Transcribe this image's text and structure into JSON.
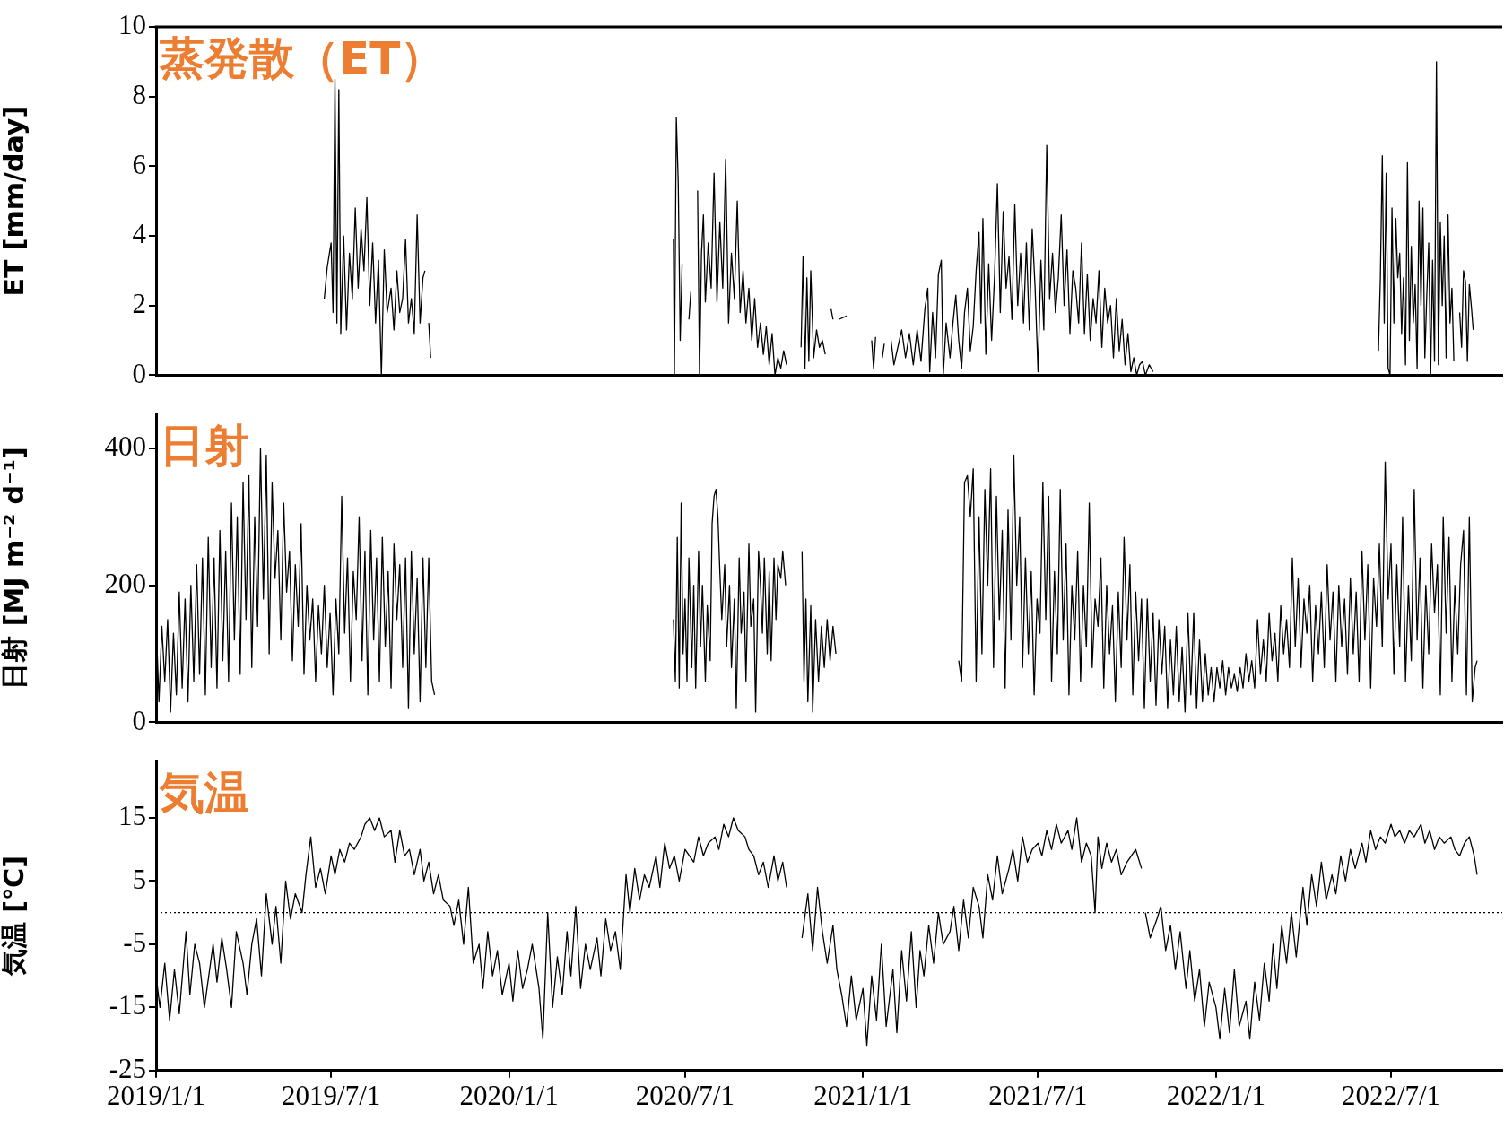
{
  "chart_data": [
    {
      "type": "line",
      "title": "蒸発散（ET）",
      "ylabel": "ET [mm/day]",
      "color": "#000000",
      "tick_labels": "y",
      "xlim": [
        "2019-01-01",
        "2022-10-24"
      ],
      "ylim": [
        0,
        10
      ],
      "yticks": [
        0,
        2,
        4,
        6,
        8,
        10
      ],
      "x": [
        "2019-06-24",
        "2019-06-27",
        "2019-07-01",
        "2019-07-03",
        "2019-07-05",
        "2019-07-07",
        "2019-07-09",
        "2019-07-11",
        "2019-07-14",
        "2019-07-17",
        "2019-07-20",
        "2019-07-23",
        "2019-07-26",
        "2019-07-29",
        "2019-08-01",
        "2019-08-04",
        "2019-08-07",
        "2019-08-10",
        "2019-08-13",
        "2019-08-16",
        "2019-08-19",
        "2019-08-22",
        "2019-08-25",
        "2019-08-28",
        "2019-09-01",
        "2019-09-04",
        "2019-09-07",
        "2019-09-10",
        "2019-09-13",
        "2019-09-16",
        "2019-09-19",
        "2019-09-22",
        "2019-09-25",
        "2019-09-28",
        "2019-10-01",
        "2019-10-04",
        "2019-10-06",
        "2019-10-08",
        "2019-10-10",
        "2019-10-12",
        "2019-10-14",
        "2020-06-19",
        "2020-06-20",
        "2020-06-22",
        "2020-06-24",
        "2020-06-26",
        "2020-06-28",
        "2020-07-01",
        "2020-07-05",
        "2020-07-07",
        "2020-07-09",
        "2020-07-14",
        "2020-07-16",
        "2020-07-18",
        "2020-07-20",
        "2020-07-22",
        "2020-07-25",
        "2020-07-28",
        "2020-07-31",
        "2020-08-03",
        "2020-08-06",
        "2020-08-09",
        "2020-08-12",
        "2020-08-15",
        "2020-08-18",
        "2020-08-21",
        "2020-08-24",
        "2020-08-27",
        "2020-08-30",
        "2020-09-02",
        "2020-09-05",
        "2020-09-08",
        "2020-09-11",
        "2020-09-14",
        "2020-09-17",
        "2020-09-20",
        "2020-09-23",
        "2020-09-26",
        "2020-09-29",
        "2020-10-02",
        "2020-10-05",
        "2020-10-08",
        "2020-10-11",
        "2020-10-14",
        "2020-10-20",
        "2020-10-29",
        "2020-10-31",
        "2020-11-02",
        "2020-11-04",
        "2020-11-06",
        "2020-11-08",
        "2020-11-11",
        "2020-11-14",
        "2020-11-17",
        "2020-11-20",
        "2020-11-23",
        "2020-11-26",
        "2020-11-29",
        "2020-12-01",
        "2020-12-03",
        "2020-12-07",
        "2020-12-15",
        "2020-12-20",
        "2021-01-10",
        "2021-01-12",
        "2021-01-14",
        "2021-01-17",
        "2021-01-21",
        "2021-01-23",
        "2021-01-26",
        "2021-01-30",
        "2021-02-02",
        "2021-02-06",
        "2021-02-10",
        "2021-02-14",
        "2021-02-18",
        "2021-02-22",
        "2021-02-26",
        "2021-03-02",
        "2021-03-06",
        "2021-03-09",
        "2021-03-11",
        "2021-03-14",
        "2021-03-17",
        "2021-03-20",
        "2021-03-23",
        "2021-03-25",
        "2021-03-28",
        "2021-04-01",
        "2021-04-04",
        "2021-04-07",
        "2021-04-10",
        "2021-04-13",
        "2021-04-16",
        "2021-04-19",
        "2021-04-22",
        "2021-04-25",
        "2021-04-28",
        "2021-05-01",
        "2021-05-03",
        "2021-05-05",
        "2021-05-08",
        "2021-05-11",
        "2021-05-14",
        "2021-05-17",
        "2021-05-20",
        "2021-05-23",
        "2021-05-26",
        "2021-05-29",
        "2021-06-01",
        "2021-06-04",
        "2021-06-07",
        "2021-06-10",
        "2021-06-13",
        "2021-06-16",
        "2021-06-19",
        "2021-06-22",
        "2021-06-25",
        "2021-06-28",
        "2021-07-01",
        "2021-07-04",
        "2021-07-07",
        "2021-07-10",
        "2021-07-13",
        "2021-07-16",
        "2021-07-19",
        "2021-07-22",
        "2021-07-25",
        "2021-07-28",
        "2021-07-31",
        "2021-08-03",
        "2021-08-06",
        "2021-08-09",
        "2021-08-12",
        "2021-08-15",
        "2021-08-18",
        "2021-08-21",
        "2021-08-24",
        "2021-08-27",
        "2021-08-30",
        "2021-09-02",
        "2021-09-05",
        "2021-09-08",
        "2021-09-11",
        "2021-09-14",
        "2021-09-17",
        "2021-09-20",
        "2021-09-23",
        "2021-09-26",
        "2021-09-29",
        "2021-10-02",
        "2021-10-05",
        "2021-10-08",
        "2021-10-11",
        "2021-10-14",
        "2021-10-17",
        "2021-10-20",
        "2021-10-24",
        "2021-10-28",
        "2021-11-05",
        "2022-06-18",
        "2022-06-20",
        "2022-06-22",
        "2022-06-24",
        "2022-06-26",
        "2022-06-28",
        "2022-06-30",
        "2022-07-02",
        "2022-07-04",
        "2022-07-06",
        "2022-07-08",
        "2022-07-10",
        "2022-07-12",
        "2022-07-14",
        "2022-07-16",
        "2022-07-18",
        "2022-07-20",
        "2022-07-22",
        "2022-07-24",
        "2022-07-26",
        "2022-07-28",
        "2022-07-30",
        "2022-08-01",
        "2022-08-03",
        "2022-08-05",
        "2022-08-07",
        "2022-08-09",
        "2022-08-11",
        "2022-08-13",
        "2022-08-15",
        "2022-08-17",
        "2022-08-19",
        "2022-08-21",
        "2022-08-23",
        "2022-08-25",
        "2022-08-27",
        "2022-08-29",
        "2022-08-31",
        "2022-09-02",
        "2022-09-04",
        "2022-09-06",
        "2022-09-10",
        "2022-09-12",
        "2022-09-14",
        "2022-09-16",
        "2022-09-18",
        "2022-09-20",
        "2022-09-22",
        "2022-09-24"
      ],
      "values": [
        2.2,
        3.1,
        3.8,
        1.8,
        8.5,
        1.5,
        8.2,
        1.2,
        4.0,
        1.3,
        3.5,
        2.2,
        4.8,
        2.5,
        4.2,
        3.0,
        5.1,
        2.0,
        3.8,
        1.5,
        3.3,
        0.0,
        3.6,
        1.8,
        2.5,
        1.3,
        3.0,
        1.8,
        2.2,
        3.9,
        1.5,
        2.2,
        1.2,
        4.6,
        1.5,
        2.8,
        3.0,
        null,
        1.5,
        0.5,
        null,
        3.9,
        0.0,
        7.4,
        5.5,
        1.0,
        3.2,
        null,
        1.6,
        2.4,
        null,
        5.3,
        0.0,
        3.5,
        4.6,
        2.1,
        3.8,
        2.5,
        5.8,
        2.1,
        4.4,
        2.5,
        6.2,
        1.5,
        3.5,
        2.2,
        5.0,
        1.8,
        3.0,
        1.5,
        2.5,
        1.0,
        2.2,
        0.8,
        1.5,
        0.6,
        1.4,
        0.3,
        1.2,
        0.0,
        0.5,
        0.2,
        0.7,
        0.3,
        null,
        0.8,
        3.4,
        0.2,
        2.8,
        0.4,
        3.0,
        0.5,
        1.3,
        0.8,
        1.0,
        0.6,
        null,
        1.9,
        1.6,
        null,
        1.6,
        1.7,
        null,
        1.0,
        0.2,
        1.1,
        null,
        0.5,
        0.9,
        null,
        1.0,
        0.3,
        0.8,
        1.3,
        0.5,
        1.2,
        0.3,
        1.3,
        0.4,
        1.9,
        2.5,
        0.1,
        1.8,
        0.5,
        2.9,
        3.3,
        0.0,
        1.5,
        0.5,
        1.5,
        2.3,
        1.0,
        0.2,
        1.8,
        2.5,
        0.7,
        1.4,
        3.0,
        4.1,
        1.5,
        4.5,
        0.6,
        3.2,
        1.0,
        2.8,
        5.5,
        1.8,
        4.7,
        2.5,
        3.4,
        1.6,
        4.9,
        2.0,
        3.5,
        1.5,
        3.8,
        1.3,
        4.2,
        2.5,
        0.1,
        3.3,
        1.3,
        6.6,
        2.2,
        3.5,
        1.8,
        2.8,
        4.6,
        2.0,
        3.6,
        1.2,
        3.0,
        2.5,
        1.5,
        3.8,
        1.2,
        2.9,
        1.0,
        2.2,
        1.5,
        3.0,
        0.8,
        2.5,
        1.5,
        2.0,
        0.5,
        2.2,
        0.7,
        1.6,
        0.3,
        1.2,
        0.1,
        0.5,
        0.0,
        0.3,
        0.4,
        0.0,
        0.3,
        0.1,
        null,
        0.7,
        2.8,
        6.3,
        1.5,
        5.8,
        0.2,
        0.0,
        4.8,
        1.5,
        4.5,
        2.8,
        3.5,
        1.2,
        2.8,
        0.3,
        6.1,
        1.0,
        3.7,
        1.5,
        2.6,
        0.2,
        5.0,
        2.0,
        4.8,
        0.5,
        2.3,
        3.8,
        0.0,
        3.3,
        0.4,
        9.0,
        0.3,
        4.4,
        2.0,
        4.0,
        0.5,
        4.6,
        1.5,
        2.5,
        0.4,
        null,
        1.8,
        0.8,
        3.0,
        2.7,
        0.4,
        2.6,
        2.0,
        1.3
      ]
    },
    {
      "type": "line",
      "title": "日射",
      "ylabel": "日射 [MJ m⁻² d⁻¹]",
      "color": "#000000",
      "tick_labels": "y",
      "xlim": [
        "2019-01-01",
        "2022-10-24"
      ],
      "ylim": [
        0,
        450
      ],
      "yticks": [
        0,
        200,
        400
      ],
      "x": [
        "2019-01-01",
        "2019-01-04",
        "2019-01-07",
        "2019-01-10",
        "2019-01-13",
        "2019-01-16",
        "2019-01-19",
        "2019-01-22",
        "2019-01-25",
        "2019-01-28",
        "2019-01-31",
        "2019-02-03",
        "2019-02-06",
        "2019-02-09",
        "2019-02-12",
        "2019-02-15",
        "2019-02-18",
        "2019-02-21",
        "2019-02-24",
        "2019-02-27",
        "2019-03-02",
        "2019-03-05",
        "2019-03-08",
        "2019-03-11",
        "2019-03-14",
        "2019-03-17",
        "2019-03-20",
        "2019-03-23",
        "2019-03-26",
        "2019-03-29",
        "2019-04-01",
        "2019-04-04",
        "2019-04-07",
        "2019-04-10",
        "2019-04-13",
        "2019-04-16",
        "2019-04-19",
        "2019-04-22",
        "2019-04-25",
        "2019-04-28",
        "2019-05-01",
        "2019-05-04",
        "2019-05-07",
        "2019-05-10",
        "2019-05-13",
        "2019-05-16",
        "2019-05-19",
        "2019-05-22",
        "2019-05-25",
        "2019-05-28",
        "2019-05-31",
        "2019-06-03",
        "2019-06-06",
        "2019-06-09",
        "2019-06-12",
        "2019-06-15",
        "2019-06-18",
        "2019-06-21",
        "2019-06-24",
        "2019-06-27",
        "2019-06-30",
        "2019-07-03",
        "2019-07-06",
        "2019-07-09",
        "2019-07-12",
        "2019-07-15",
        "2019-07-18",
        "2019-07-21",
        "2019-07-24",
        "2019-07-27",
        "2019-07-30",
        "2019-08-02",
        "2019-08-05",
        "2019-08-08",
        "2019-08-11",
        "2019-08-14",
        "2019-08-17",
        "2019-08-20",
        "2019-08-23",
        "2019-08-26",
        "2019-08-29",
        "2019-09-01",
        "2019-09-04",
        "2019-09-07",
        "2019-09-10",
        "2019-09-13",
        "2019-09-16",
        "2019-09-19",
        "2019-09-22",
        "2019-09-25",
        "2019-09-28",
        "2019-10-01",
        "2019-10-04",
        "2019-10-07",
        "2019-10-10",
        "2019-10-13",
        "2019-10-16",
        "2019-10-18",
        "2020-06-19",
        "2020-06-21",
        "2020-06-23",
        "2020-06-25",
        "2020-06-27",
        "2020-06-29",
        "2020-07-01",
        "2020-07-03",
        "2020-07-05",
        "2020-07-08",
        "2020-07-10",
        "2020-07-12",
        "2020-07-15",
        "2020-07-17",
        "2020-07-19",
        "2020-07-22",
        "2020-07-24",
        "2020-07-27",
        "2020-07-29",
        "2020-07-31",
        "2020-08-02",
        "2020-08-04",
        "2020-08-06",
        "2020-08-08",
        "2020-08-11",
        "2020-08-13",
        "2020-08-16",
        "2020-08-18",
        "2020-08-21",
        "2020-08-23",
        "2020-08-26",
        "2020-08-28",
        "2020-08-31",
        "2020-09-02",
        "2020-09-05",
        "2020-09-07",
        "2020-09-10",
        "2020-09-12",
        "2020-09-15",
        "2020-09-17",
        "2020-09-19",
        "2020-09-21",
        "2020-09-24",
        "2020-09-26",
        "2020-09-28",
        "2020-10-01",
        "2020-10-03",
        "2020-10-05",
        "2020-10-08",
        "2020-10-10",
        "2020-10-13",
        "2020-10-20",
        "2020-10-30",
        "2020-11-01",
        "2020-11-03",
        "2020-11-05",
        "2020-11-08",
        "2020-11-10",
        "2020-11-13",
        "2020-11-16",
        "2020-11-19",
        "2020-11-22",
        "2020-11-25",
        "2020-11-28",
        "2020-12-01",
        "2020-12-04",
        "2020-12-10",
        "2021-04-10",
        "2021-04-13",
        "2021-04-16",
        "2021-04-19",
        "2021-04-22",
        "2021-04-25",
        "2021-04-28",
        "2021-05-01",
        "2021-05-04",
        "2021-05-07",
        "2021-05-10",
        "2021-05-13",
        "2021-05-16",
        "2021-05-19",
        "2021-05-22",
        "2021-05-25",
        "2021-05-28",
        "2021-05-31",
        "2021-06-03",
        "2021-06-06",
        "2021-06-09",
        "2021-06-12",
        "2021-06-15",
        "2021-06-18",
        "2021-06-21",
        "2021-06-24",
        "2021-06-27",
        "2021-06-30",
        "2021-07-03",
        "2021-07-06",
        "2021-07-09",
        "2021-07-12",
        "2021-07-15",
        "2021-07-18",
        "2021-07-21",
        "2021-07-24",
        "2021-07-27",
        "2021-07-30",
        "2021-08-02",
        "2021-08-05",
        "2021-08-08",
        "2021-08-11",
        "2021-08-14",
        "2021-08-17",
        "2021-08-20",
        "2021-08-23",
        "2021-08-26",
        "2021-08-29",
        "2021-09-01",
        "2021-09-04",
        "2021-09-07",
        "2021-09-10",
        "2021-09-13",
        "2021-09-16",
        "2021-09-19",
        "2021-09-22",
        "2021-09-25",
        "2021-09-28",
        "2021-10-01",
        "2021-10-04",
        "2021-10-07",
        "2021-10-10",
        "2021-10-13",
        "2021-10-16",
        "2021-10-19",
        "2021-10-22",
        "2021-10-25",
        "2021-10-28",
        "2021-10-31",
        "2021-11-03",
        "2021-11-06",
        "2021-11-09",
        "2021-11-12",
        "2021-11-15",
        "2021-11-18",
        "2021-11-21",
        "2021-11-24",
        "2021-11-27",
        "2021-11-30",
        "2021-12-03",
        "2021-12-06",
        "2021-12-09",
        "2021-12-12",
        "2021-12-15",
        "2021-12-18",
        "2021-12-21",
        "2021-12-24",
        "2021-12-27",
        "2021-12-30",
        "2022-01-02",
        "2022-01-05",
        "2022-01-08",
        "2022-01-11",
        "2022-01-14",
        "2022-01-17",
        "2022-01-20",
        "2022-01-23",
        "2022-01-26",
        "2022-01-29",
        "2022-02-01",
        "2022-02-04",
        "2022-02-07",
        "2022-02-10",
        "2022-02-13",
        "2022-02-16",
        "2022-02-19",
        "2022-02-22",
        "2022-02-25",
        "2022-02-28",
        "2022-03-03",
        "2022-03-06",
        "2022-03-09",
        "2022-03-12",
        "2022-03-15",
        "2022-03-18",
        "2022-03-21",
        "2022-03-24",
        "2022-03-27",
        "2022-03-30",
        "2022-04-02",
        "2022-04-05",
        "2022-04-08",
        "2022-04-11",
        "2022-04-14",
        "2022-04-17",
        "2022-04-20",
        "2022-04-23",
        "2022-04-26",
        "2022-04-29",
        "2022-05-02",
        "2022-05-05",
        "2022-05-08",
        "2022-05-11",
        "2022-05-14",
        "2022-05-17",
        "2022-05-20",
        "2022-05-23",
        "2022-05-26",
        "2022-05-29",
        "2022-06-01",
        "2022-06-04",
        "2022-06-07",
        "2022-06-10",
        "2022-06-13",
        "2022-06-16",
        "2022-06-19",
        "2022-06-22",
        "2022-06-25",
        "2022-06-28",
        "2022-07-01",
        "2022-07-04",
        "2022-07-07",
        "2022-07-10",
        "2022-07-13",
        "2022-07-16",
        "2022-07-19",
        "2022-07-22",
        "2022-07-25",
        "2022-07-28",
        "2022-07-31",
        "2022-08-03",
        "2022-08-06",
        "2022-08-09",
        "2022-08-12",
        "2022-08-15",
        "2022-08-18",
        "2022-08-21",
        "2022-08-24",
        "2022-08-27",
        "2022-08-30",
        "2022-09-02",
        "2022-09-05",
        "2022-09-08",
        "2022-09-11",
        "2022-09-14",
        "2022-09-17",
        "2022-09-20",
        "2022-09-23",
        "2022-09-26",
        "2022-09-28"
      ],
      "values": [
        150,
        30,
        140,
        60,
        150,
        15,
        130,
        40,
        190,
        50,
        180,
        30,
        200,
        60,
        230,
        70,
        240,
        40,
        270,
        80,
        240,
        50,
        280,
        90,
        250,
        60,
        320,
        120,
        300,
        70,
        350,
        150,
        360,
        80,
        300,
        140,
        400,
        180,
        390,
        100,
        350,
        210,
        280,
        120,
        320,
        190,
        250,
        90,
        230,
        140,
        290,
        70,
        200,
        120,
        180,
        60,
        170,
        100,
        200,
        80,
        160,
        40,
        180,
        100,
        330,
        130,
        240,
        60,
        220,
        150,
        300,
        90,
        250,
        40,
        280,
        120,
        240,
        60,
        270,
        110,
        220,
        50,
        260,
        150,
        230,
        80,
        240,
        20,
        250,
        100,
        210,
        30,
        240,
        80,
        240,
        60,
        40,
        null,
        150,
        60,
        270,
        50,
        320,
        100,
        180,
        60,
        240,
        80,
        200,
        50,
        250,
        110,
        200,
        60,
        170,
        90,
        290,
        330,
        340,
        300,
        220,
        150,
        230,
        110,
        200,
        80,
        180,
        20,
        240,
        130,
        190,
        60,
        260,
        140,
        180,
        15,
        250,
        200,
        130,
        240,
        100,
        220,
        90,
        240,
        150,
        230,
        210,
        250,
        200,
        null,
        250,
        60,
        180,
        30,
        170,
        15,
        150,
        60,
        140,
        80,
        150,
        90,
        140,
        100,
        null,
        90,
        60,
        350,
        360,
        300,
        370,
        60,
        300,
        100,
        340,
        200,
        370,
        80,
        330,
        150,
        280,
        50,
        310,
        120,
        390,
        200,
        300,
        80,
        240,
        100,
        220,
        40,
        180,
        130,
        350,
        150,
        330,
        60,
        220,
        100,
        340,
        120,
        260,
        40,
        200,
        120,
        250,
        60,
        200,
        110,
        320,
        80,
        180,
        140,
        240,
        50,
        200,
        100,
        170,
        30,
        190,
        80,
        270,
        120,
        230,
        40,
        190,
        90,
        180,
        20,
        180,
        60,
        160,
        25,
        150,
        70,
        140,
        20,
        120,
        40,
        140,
        30,
        110,
        15,
        160,
        40,
        160,
        20,
        120,
        30,
        100,
        40,
        80,
        30,
        80,
        50,
        90,
        40,
        80,
        50,
        70,
        45,
        80,
        50,
        100,
        60,
        90,
        50,
        150,
        70,
        120,
        60,
        160,
        90,
        130,
        60,
        170,
        100,
        150,
        80,
        240,
        110,
        210,
        80,
        180,
        130,
        200,
        60,
        170,
        100,
        190,
        80,
        230,
        120,
        190,
        60,
        200,
        110,
        180,
        70,
        210,
        100,
        190,
        60,
        250,
        120,
        230,
        50,
        210,
        140,
        260,
        110,
        380,
        180,
        260,
        70,
        230,
        110,
        300,
        60,
        200,
        90,
        340,
        120,
        240,
        50,
        200,
        100,
        260,
        160,
        230,
        40,
        300,
        130,
        270,
        60,
        200,
        100,
        230,
        280,
        40,
        300,
        30,
        80,
        90
      ]
    },
    {
      "type": "line",
      "title": "気温",
      "ylabel": "気温 [℃]",
      "color": "#000000",
      "xlim": [
        "2019-01-01",
        "2022-10-24"
      ],
      "ylim": [
        -25,
        24
      ],
      "yticks": [
        -25,
        -15,
        -5,
        5,
        15
      ],
      "xticks": [
        {
          "value": "2019-01-01",
          "label": "2019/1/1"
        },
        {
          "value": "2019-07-01",
          "label": "2019/7/1"
        },
        {
          "value": "2020-01-01",
          "label": "2020/1/1"
        },
        {
          "value": "2020-07-01",
          "label": "2020/7/1"
        },
        {
          "value": "2021-01-01",
          "label": "2021/1/1"
        },
        {
          "value": "2021-07-01",
          "label": "2021/7/1"
        },
        {
          "value": "2022-01-01",
          "label": "2022/1/1"
        },
        {
          "value": "2022-07-01",
          "label": "2022/7/1"
        }
      ],
      "ref_lines": [
        {
          "axis": "y",
          "value": 0,
          "color": "#000000",
          "line_style": "dotted"
        }
      ],
      "x": [
        "2019-01-01",
        "2019-01-05",
        "2019-01-10",
        "2019-01-15",
        "2019-01-20",
        "2019-01-25",
        "2019-02-01",
        "2019-02-05",
        "2019-02-10",
        "2019-02-15",
        "2019-02-20",
        "2019-03-01",
        "2019-03-05",
        "2019-03-10",
        "2019-03-15",
        "2019-03-20",
        "2019-03-25",
        "2019-04-01",
        "2019-04-05",
        "2019-04-10",
        "2019-04-15",
        "2019-04-20",
        "2019-04-25",
        "2019-05-01",
        "2019-05-05",
        "2019-05-10",
        "2019-05-15",
        "2019-05-20",
        "2019-05-25",
        "2019-06-01",
        "2019-06-05",
        "2019-06-10",
        "2019-06-15",
        "2019-06-20",
        "2019-06-25",
        "2019-07-01",
        "2019-07-05",
        "2019-07-10",
        "2019-07-15",
        "2019-07-20",
        "2019-07-25",
        "2019-08-01",
        "2019-08-05",
        "2019-08-10",
        "2019-08-15",
        "2019-08-20",
        "2019-08-25",
        "2019-09-01",
        "2019-09-05",
        "2019-09-10",
        "2019-09-15",
        "2019-09-20",
        "2019-09-25",
        "2019-10-01",
        "2019-10-05",
        "2019-10-10",
        "2019-10-15",
        "2019-10-20",
        "2019-10-25",
        "2019-11-01",
        "2019-11-05",
        "2019-11-10",
        "2019-11-15",
        "2019-11-20",
        "2019-11-25",
        "2019-12-01",
        "2019-12-05",
        "2019-12-10",
        "2019-12-15",
        "2019-12-20",
        "2019-12-25",
        "2020-01-01",
        "2020-01-05",
        "2020-01-10",
        "2020-01-15",
        "2020-01-20",
        "2020-01-25",
        "2020-02-01",
        "2020-02-05",
        "2020-02-10",
        "2020-02-15",
        "2020-02-20",
        "2020-02-25",
        "2020-03-01",
        "2020-03-05",
        "2020-03-10",
        "2020-03-15",
        "2020-03-20",
        "2020-03-25",
        "2020-04-01",
        "2020-04-05",
        "2020-04-10",
        "2020-04-15",
        "2020-04-20",
        "2020-04-25",
        "2020-05-01",
        "2020-05-05",
        "2020-05-10",
        "2020-05-15",
        "2020-05-20",
        "2020-05-25",
        "2020-06-01",
        "2020-06-05",
        "2020-06-10",
        "2020-06-15",
        "2020-06-20",
        "2020-06-25",
        "2020-07-01",
        "2020-07-10",
        "2020-07-15",
        "2020-07-20",
        "2020-07-25",
        "2020-08-01",
        "2020-08-05",
        "2020-08-10",
        "2020-08-15",
        "2020-08-20",
        "2020-08-25",
        "2020-09-01",
        "2020-09-05",
        "2020-09-10",
        "2020-09-15",
        "2020-09-20",
        "2020-09-25",
        "2020-10-01",
        "2020-10-05",
        "2020-10-10",
        "2020-10-14",
        "2020-10-20",
        "2020-10-30",
        "2020-11-05",
        "2020-11-10",
        "2020-11-15",
        "2020-11-20",
        "2020-11-25",
        "2020-12-01",
        "2020-12-05",
        "2020-12-10",
        "2020-12-15",
        "2020-12-20",
        "2020-12-25",
        "2021-01-01",
        "2021-01-05",
        "2021-01-10",
        "2021-01-15",
        "2021-01-20",
        "2021-01-25",
        "2021-02-01",
        "2021-02-05",
        "2021-02-10",
        "2021-02-15",
        "2021-02-20",
        "2021-02-25",
        "2021-03-01",
        "2021-03-05",
        "2021-03-10",
        "2021-03-15",
        "2021-03-20",
        "2021-03-25",
        "2021-04-01",
        "2021-04-05",
        "2021-04-10",
        "2021-04-15",
        "2021-04-20",
        "2021-04-25",
        "2021-05-01",
        "2021-05-05",
        "2021-05-10",
        "2021-05-15",
        "2021-05-20",
        "2021-05-25",
        "2021-06-01",
        "2021-06-05",
        "2021-06-10",
        "2021-06-15",
        "2021-06-20",
        "2021-06-25",
        "2021-07-01",
        "2021-07-05",
        "2021-07-10",
        "2021-07-15",
        "2021-07-20",
        "2021-07-25",
        "2021-08-01",
        "2021-08-05",
        "2021-08-10",
        "2021-08-15",
        "2021-08-20",
        "2021-08-25",
        "2021-08-29",
        "2021-09-01",
        "2021-09-05",
        "2021-09-10",
        "2021-09-15",
        "2021-09-20",
        "2021-09-25",
        "2021-10-01",
        "2021-10-10",
        "2021-10-16",
        "2021-10-18",
        "2021-10-20",
        "2021-10-25",
        "2021-11-01",
        "2021-11-05",
        "2021-11-10",
        "2021-11-15",
        "2021-11-20",
        "2021-11-25",
        "2021-12-01",
        "2021-12-05",
        "2021-12-10",
        "2021-12-15",
        "2021-12-20",
        "2021-12-25",
        "2022-01-01",
        "2022-01-05",
        "2022-01-10",
        "2022-01-15",
        "2022-01-20",
        "2022-01-25",
        "2022-02-01",
        "2022-02-05",
        "2022-02-10",
        "2022-02-15",
        "2022-02-20",
        "2022-02-25",
        "2022-03-01",
        "2022-03-05",
        "2022-03-10",
        "2022-03-15",
        "2022-03-20",
        "2022-03-25",
        "2022-04-01",
        "2022-04-05",
        "2022-04-10",
        "2022-04-15",
        "2022-04-20",
        "2022-04-25",
        "2022-05-01",
        "2022-05-05",
        "2022-05-10",
        "2022-05-15",
        "2022-05-20",
        "2022-05-25",
        "2022-06-01",
        "2022-06-05",
        "2022-06-10",
        "2022-06-15",
        "2022-06-20",
        "2022-06-25",
        "2022-07-01",
        "2022-07-05",
        "2022-07-10",
        "2022-07-15",
        "2022-07-20",
        "2022-07-25",
        "2022-08-01",
        "2022-08-05",
        "2022-08-10",
        "2022-08-15",
        "2022-08-20",
        "2022-08-25",
        "2022-09-01",
        "2022-09-05",
        "2022-09-10",
        "2022-09-15",
        "2022-09-20",
        "2022-09-25",
        "2022-09-28"
      ],
      "values": [
        -10,
        -15,
        -8,
        -17,
        -9,
        -16,
        -3,
        -13,
        -5,
        -8,
        -15,
        -5,
        -11,
        -4,
        -9,
        -15,
        -3,
        -8,
        -13,
        -5,
        -1,
        -10,
        3,
        -5,
        1,
        -8,
        5,
        -1,
        3,
        0,
        6,
        12,
        4,
        7,
        3,
        9,
        6,
        10,
        8,
        11,
        10,
        12,
        14,
        15,
        13,
        15,
        12,
        13,
        8,
        13,
        9,
        10,
        6,
        10,
        5,
        8,
        3,
        6,
        2,
        1,
        -2,
        2,
        -5,
        4,
        -8,
        -5,
        -12,
        -3,
        -10,
        -6,
        -13,
        -8,
        -14,
        -6,
        -12,
        -9,
        -5,
        -12,
        -20,
        0,
        -15,
        -7,
        -13,
        -3,
        -10,
        1,
        -12,
        -5,
        -9,
        -4,
        -10,
        -1,
        -6,
        -3,
        -9,
        6,
        0,
        7,
        2,
        6,
        4,
        9,
        4,
        11,
        7,
        9,
        5,
        10,
        8,
        12,
        9,
        11,
        12,
        10,
        14,
        12,
        15,
        13,
        12,
        10,
        9,
        6,
        8,
        4,
        9,
        5,
        8,
        4,
        null,
        -4,
        3,
        -6,
        4,
        -3,
        -8,
        -2,
        -9,
        -13,
        -18,
        -10,
        -17,
        -12,
        -21,
        -10,
        -17,
        -5,
        -18,
        -9,
        -19,
        -6,
        -14,
        -3,
        -15,
        -6,
        -10,
        -2,
        -8,
        0,
        -5,
        -3,
        1,
        -6,
        2,
        -4,
        4,
        1,
        -4,
        6,
        2,
        9,
        3,
        7,
        10,
        5,
        12,
        8,
        10,
        11,
        9,
        13,
        10,
        14,
        11,
        13,
        10,
        15,
        8,
        11,
        9,
        0,
        12,
        7,
        11,
        8,
        10,
        6,
        8,
        10,
        7,
        null,
        0,
        -4,
        -1,
        1,
        -6,
        -2,
        -9,
        -3,
        -12,
        -6,
        -14,
        -9,
        -18,
        -11,
        -15,
        -20,
        -12,
        -19,
        -9,
        -18,
        -14,
        -20,
        -11,
        -17,
        -8,
        -14,
        -5,
        -12,
        -2,
        -8,
        0,
        -7,
        4,
        -2,
        6,
        1,
        8,
        2,
        6,
        3,
        9,
        5,
        10,
        7,
        11,
        8,
        13,
        10,
        12,
        11,
        14,
        12,
        13,
        11,
        13,
        12,
        14,
        11,
        13,
        10,
        12,
        11,
        12,
        10,
        9,
        11,
        12,
        9,
        6
      ]
    }
  ]
}
